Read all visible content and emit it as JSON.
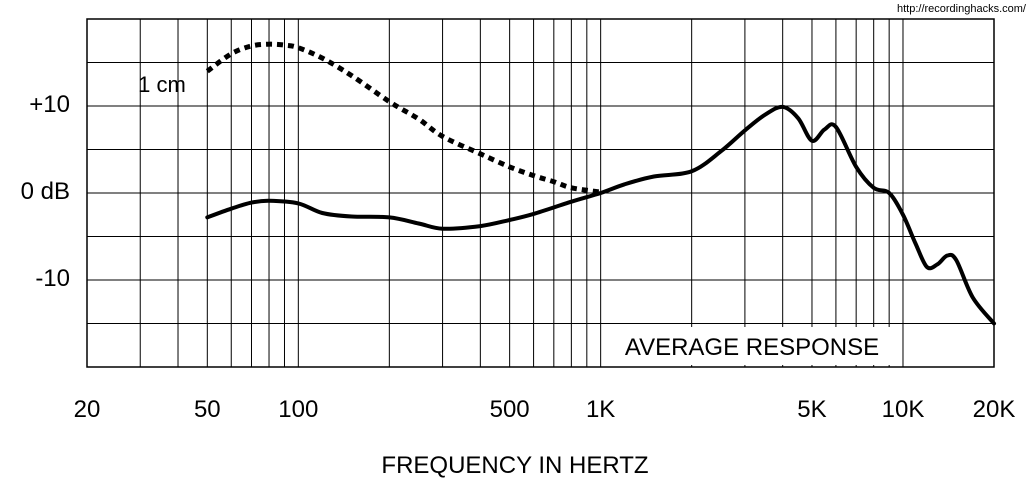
{
  "site_credit": "http://recordinghacks.com/",
  "chart_data": {
    "type": "line",
    "xlabel": "FREQUENCY IN HERTZ",
    "x_scale": "log",
    "xlim": [
      20,
      20000
    ],
    "ylim": [
      -20,
      20
    ],
    "x_ticks": [
      {
        "value": 20,
        "label": "20"
      },
      {
        "value": 50,
        "label": "50"
      },
      {
        "value": 100,
        "label": "100"
      },
      {
        "value": 500,
        "label": "500"
      },
      {
        "value": 1000,
        "label": "1K"
      },
      {
        "value": 5000,
        "label": "5K"
      },
      {
        "value": 10000,
        "label": "10K"
      },
      {
        "value": 20000,
        "label": "20K"
      }
    ],
    "y_ticks": [
      {
        "value": 10,
        "label": "+10"
      },
      {
        "value": 0,
        "label": "0 dB"
      },
      {
        "value": -10,
        "label": "-10"
      }
    ],
    "grid": true,
    "colors": {
      "line": "#000000",
      "grid": "#000000",
      "background": "#ffffff"
    },
    "series": [
      {
        "name": "AVERAGE RESPONSE",
        "style": "solid",
        "points": [
          [
            50,
            -2.8
          ],
          [
            60,
            -1.8
          ],
          [
            70,
            -1.1
          ],
          [
            80,
            -0.9
          ],
          [
            100,
            -1.2
          ],
          [
            120,
            -2.3
          ],
          [
            150,
            -2.7
          ],
          [
            200,
            -2.8
          ],
          [
            250,
            -3.5
          ],
          [
            300,
            -4.1
          ],
          [
            400,
            -3.8
          ],
          [
            500,
            -3.1
          ],
          [
            600,
            -2.4
          ],
          [
            800,
            -1.0
          ],
          [
            1000,
            0.0
          ],
          [
            1200,
            1.0
          ],
          [
            1500,
            1.9
          ],
          [
            2000,
            2.5
          ],
          [
            2500,
            4.8
          ],
          [
            3000,
            7.2
          ],
          [
            3500,
            9.0
          ],
          [
            4000,
            9.9
          ],
          [
            4500,
            8.6
          ],
          [
            5000,
            6.0
          ],
          [
            5500,
            7.3
          ],
          [
            6000,
            7.6
          ],
          [
            7000,
            3.0
          ],
          [
            8000,
            0.6
          ],
          [
            9000,
            0.0
          ],
          [
            10000,
            -2.5
          ],
          [
            11000,
            -5.8
          ],
          [
            12000,
            -8.5
          ],
          [
            13000,
            -8.2
          ],
          [
            14000,
            -7.2
          ],
          [
            15000,
            -7.7
          ],
          [
            17000,
            -12.0
          ],
          [
            20000,
            -15.0
          ]
        ]
      },
      {
        "name": "1 cm",
        "style": "dotted",
        "points": [
          [
            50,
            14.0
          ],
          [
            60,
            16.0
          ],
          [
            70,
            16.9
          ],
          [
            80,
            17.1
          ],
          [
            90,
            17.0
          ],
          [
            100,
            16.7
          ],
          [
            120,
            15.5
          ],
          [
            150,
            13.5
          ],
          [
            200,
            10.5
          ],
          [
            250,
            8.5
          ],
          [
            300,
            6.5
          ],
          [
            400,
            4.5
          ],
          [
            500,
            3.0
          ],
          [
            600,
            2.0
          ],
          [
            700,
            1.3
          ],
          [
            800,
            0.6
          ],
          [
            1000,
            0.1
          ]
        ]
      }
    ],
    "annotations": [
      {
        "text": "1 cm",
        "target_series": "1 cm"
      },
      {
        "text": "AVERAGE RESPONSE",
        "target_series": "AVERAGE RESPONSE"
      }
    ]
  }
}
